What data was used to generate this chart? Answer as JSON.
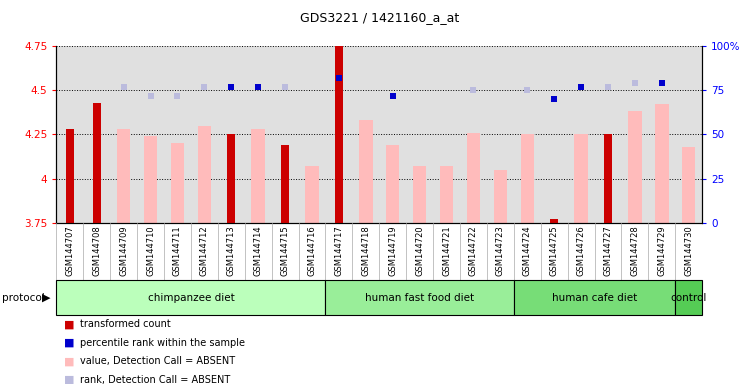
{
  "title": "GDS3221 / 1421160_a_at",
  "samples": [
    "GSM144707",
    "GSM144708",
    "GSM144709",
    "GSM144710",
    "GSM144711",
    "GSM144712",
    "GSM144713",
    "GSM144714",
    "GSM144715",
    "GSM144716",
    "GSM144717",
    "GSM144718",
    "GSM144719",
    "GSM144720",
    "GSM144721",
    "GSM144722",
    "GSM144723",
    "GSM144724",
    "GSM144725",
    "GSM144726",
    "GSM144727",
    "GSM144728",
    "GSM144729",
    "GSM144730"
  ],
  "transformed_count": [
    4.28,
    4.43,
    null,
    null,
    null,
    null,
    4.25,
    null,
    4.19,
    null,
    4.77,
    null,
    null,
    null,
    null,
    null,
    null,
    null,
    3.77,
    null,
    4.25,
    null,
    null,
    null
  ],
  "percentile_rank": [
    null,
    null,
    null,
    null,
    null,
    null,
    77,
    77,
    null,
    null,
    82,
    null,
    72,
    null,
    null,
    null,
    null,
    null,
    70,
    77,
    null,
    null,
    79,
    null
  ],
  "value_absent": [
    null,
    null,
    4.28,
    4.24,
    4.2,
    4.3,
    null,
    4.28,
    null,
    4.07,
    null,
    4.33,
    4.19,
    4.07,
    4.07,
    4.26,
    4.05,
    4.25,
    null,
    4.25,
    null,
    4.38,
    4.42,
    4.18
  ],
  "rank_absent": [
    null,
    null,
    77,
    72,
    72,
    77,
    null,
    null,
    77,
    null,
    null,
    null,
    null,
    null,
    null,
    75,
    null,
    75,
    null,
    null,
    77,
    79,
    null,
    null
  ],
  "ylim_left": [
    3.75,
    4.75
  ],
  "ylim_right": [
    0,
    100
  ],
  "yticks_left": [
    3.75,
    4.0,
    4.25,
    4.5,
    4.75
  ],
  "yticks_right": [
    0,
    25,
    50,
    75,
    100
  ],
  "ytick_labels_left": [
    "3.75",
    "4",
    "4.25",
    "4.5",
    "4.75"
  ],
  "ytick_labels_right": [
    "0",
    "25",
    "50",
    "75",
    "100%"
  ],
  "group_boundaries": [
    {
      "label": "chimpanzee diet",
      "start": 0,
      "end": 10,
      "color": "#bbffbb"
    },
    {
      "label": "human fast food diet",
      "start": 10,
      "end": 17,
      "color": "#99ee99"
    },
    {
      "label": "human cafe diet",
      "start": 17,
      "end": 23,
      "color": "#77dd77"
    },
    {
      "label": "control",
      "start": 23,
      "end": 24,
      "color": "#55cc55"
    }
  ],
  "color_dark_red": "#cc0000",
  "color_dark_blue": "#0000cc",
  "color_pink": "#ffbbbb",
  "color_lavender": "#bbbbdd",
  "bg_plot": "#e0e0e0",
  "bg_xticklabel": "#d0d0d0"
}
